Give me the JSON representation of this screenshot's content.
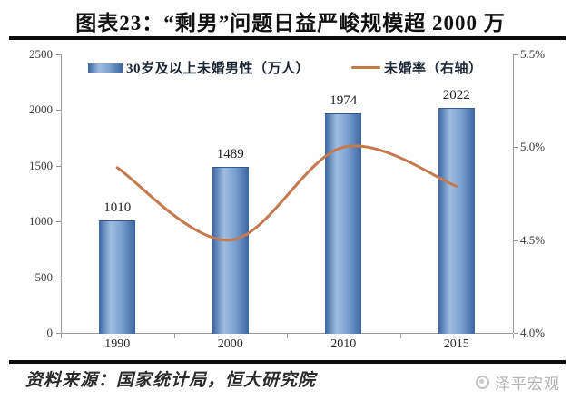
{
  "title": "图表23：“剩男”问题日益严峻规模超 2000 万",
  "chart_data": {
    "type": "bar",
    "title": "图表23：“剩男”问题日益严峻规模超 2000 万",
    "categories": [
      "1990",
      "2000",
      "2010",
      "2015"
    ],
    "series": [
      {
        "name": "30岁及以上未婚男性（万人）",
        "type": "bar",
        "axis": "left",
        "values": [
          1010,
          1489,
          1974,
          2022
        ],
        "data_labels": [
          "1010",
          "1489",
          "1974",
          "2022"
        ]
      },
      {
        "name": "未婚率（右轴）",
        "type": "line",
        "axis": "right",
        "values": [
          4.89,
          4.5,
          5.0,
          4.79
        ]
      }
    ],
    "left_axis": {
      "min": 0,
      "max": 2500,
      "ticks": [
        "2500",
        "2000",
        "1500",
        "1000",
        "500",
        "0"
      ]
    },
    "right_axis": {
      "min": 4.0,
      "max": 5.5,
      "ticks": [
        "5.5%",
        "5.0%",
        "4.5%",
        "4.0%"
      ]
    },
    "grid": false,
    "legend_position": "top"
  },
  "colors": {
    "bar_dark": "#3a66a3",
    "bar_mid": "#7ba1d1",
    "bar_light": "#9fbde0",
    "line": "#c4794e",
    "axis": "#9a9a9a",
    "rule": "#0d0d0d",
    "text": "#1f1f1f",
    "watermark": "#b3b3b3"
  },
  "footer": {
    "source": "资料来源：国家统计局，恒大研究院",
    "watermark": "泽平宏观"
  }
}
